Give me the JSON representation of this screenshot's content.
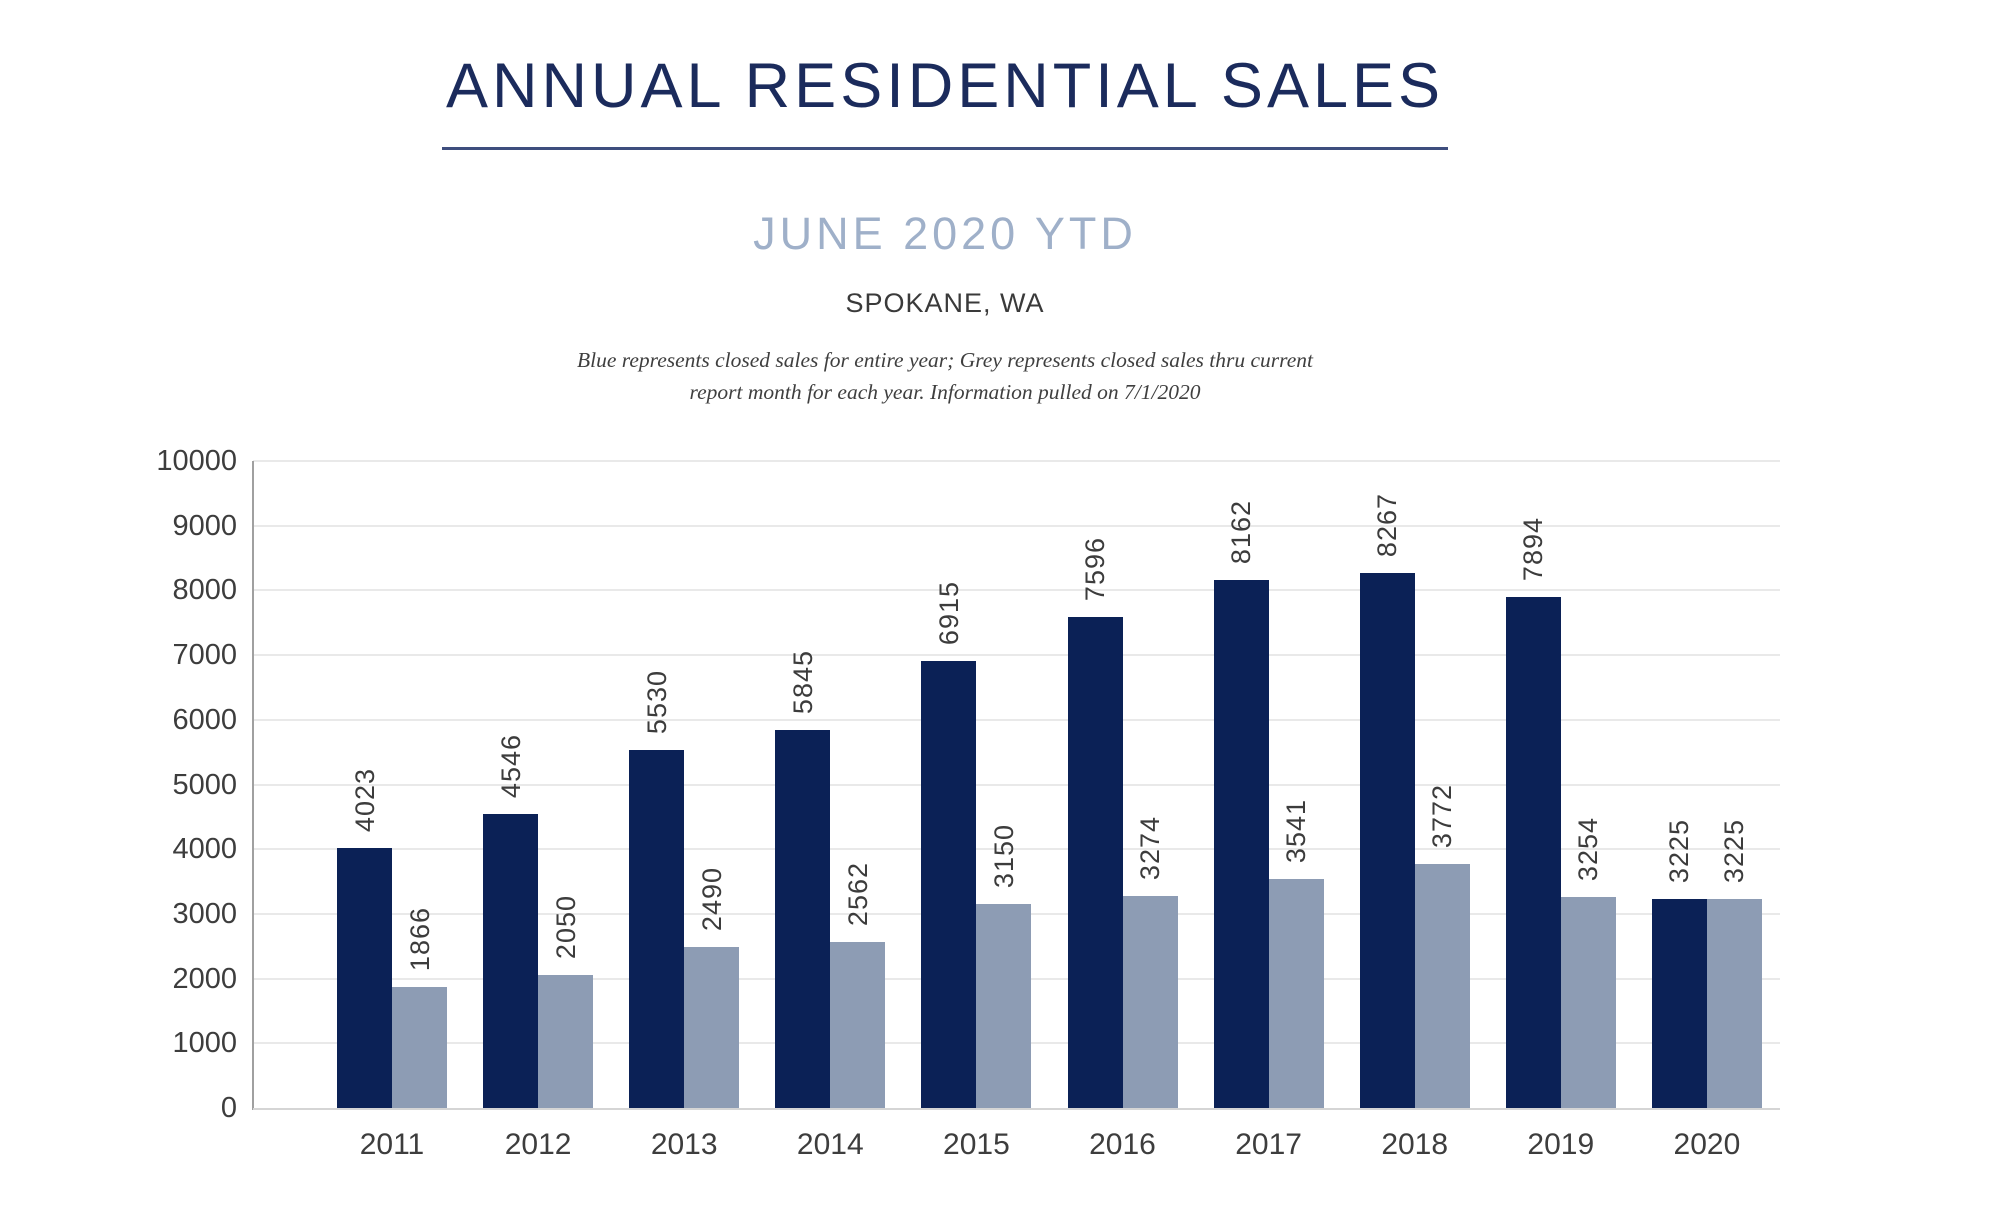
{
  "chart_data": {
    "type": "bar",
    "title": "ANNUAL RESIDENTIAL SALES",
    "subtitle": "JUNE 2020 YTD",
    "location": "SPOKANE, WA",
    "note_line1": "Blue represents closed sales for entire year; Grey represents closed sales thru current",
    "note_line2": "report month for each year.  Information pulled on 7/1/2020",
    "categories": [
      "2011",
      "2012",
      "2013",
      "2014",
      "2015",
      "2016",
      "2017",
      "2018",
      "2019",
      "2020"
    ],
    "series": [
      {
        "name": "Closed sales for entire year",
        "color": "#0b2156",
        "values": [
          4023,
          4546,
          5530,
          5845,
          6915,
          7596,
          8162,
          8267,
          7894,
          3225
        ]
      },
      {
        "name": "Closed sales thru current report month",
        "color": "#8d9cb4",
        "values": [
          1866,
          2050,
          2490,
          2562,
          3150,
          3274,
          3541,
          3772,
          3254,
          3225
        ]
      }
    ],
    "yticks": [
      0,
      1000,
      2000,
      3000,
      4000,
      5000,
      6000,
      7000,
      8000,
      9000,
      10000
    ],
    "ylim": [
      0,
      10000
    ],
    "grid": true,
    "legend_position": "none",
    "value_label_style": "rotated-90",
    "colors": {
      "title": "#1b2b5c",
      "subtitle": "#9fb0c9",
      "underline": "#3e4e7e",
      "bar_annual": "#0b2156",
      "bar_ytd": "#8d9cb4",
      "gridline": "#e9e9e9",
      "axis": "#a0a0a0",
      "tick_text": "#3d3d3d"
    }
  }
}
